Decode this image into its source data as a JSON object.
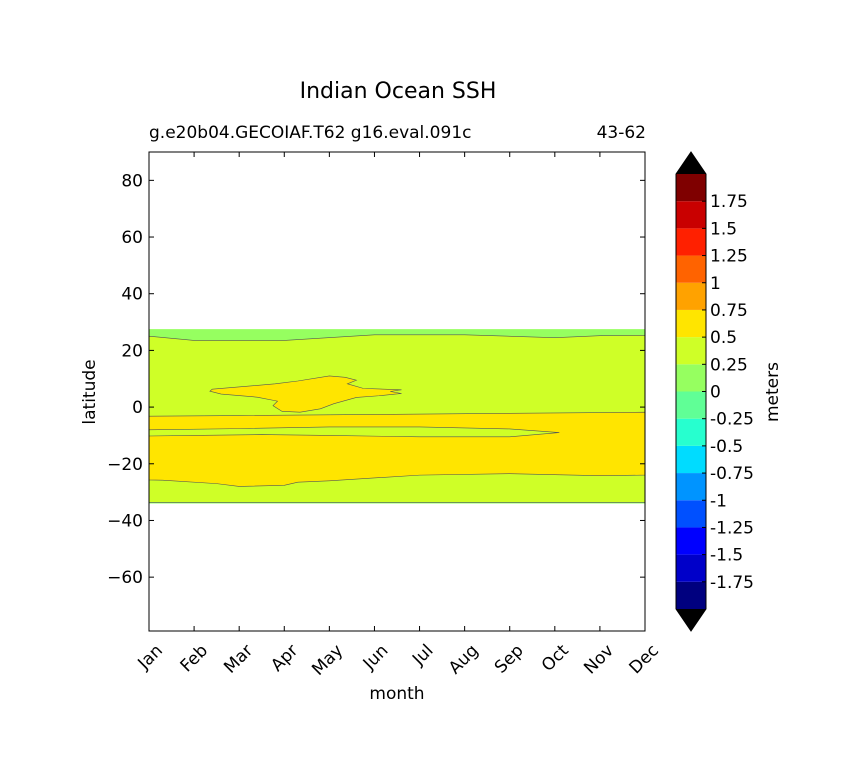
{
  "chart_data": {
    "type": "heatmap",
    "title": "Indian Ocean SSH",
    "subtitle_left": "g.e20b04.GECOIAF.T62 g16.eval.091c",
    "subtitle_right": "43-62",
    "xlabel": "month",
    "ylabel": "latitude",
    "x_categories": [
      "Jan",
      "Feb",
      "Mar",
      "Apr",
      "May",
      "Jun",
      "Jul",
      "Aug",
      "Sep",
      "Oct",
      "Nov",
      "Dec"
    ],
    "xlim": [
      0,
      11
    ],
    "ylim": [
      -79,
      90
    ],
    "y_ticks": [
      80,
      60,
      40,
      20,
      0,
      -20,
      -40,
      -60
    ],
    "colorbar": {
      "label": "meters",
      "levels": [
        -2.0,
        -1.75,
        -1.5,
        -1.25,
        -1.0,
        -0.75,
        -0.5,
        -0.25,
        0,
        0.25,
        0.5,
        0.75,
        1.0,
        1.25,
        1.5,
        1.75,
        2.0
      ],
      "tick_labels": [
        "1.75",
        "1.5",
        "1.25",
        "1",
        "0.75",
        "0.5",
        "0.25",
        "0",
        "-0.25",
        "-0.5",
        "-0.75",
        "-1",
        "-1.25",
        "-1.5",
        "-1.75"
      ],
      "tick_values": [
        1.75,
        1.5,
        1.25,
        1.0,
        0.75,
        0.5,
        0.25,
        0,
        -0.25,
        -0.5,
        -0.75,
        -1.0,
        -1.25,
        -1.5,
        -1.75
      ],
      "colors": [
        "#00007f",
        "#0000c9",
        "#0000ff",
        "#0050ff",
        "#0094ff",
        "#00dcff",
        "#27ffcf",
        "#60ff96",
        "#96ff60",
        "#cfff27",
        "#ffe500",
        "#ffa200",
        "#ff6300",
        "#ff2000",
        "#c90000",
        "#7f0000"
      ],
      "extend": "both",
      "under_color": "#000000",
      "over_color": "#000000"
    },
    "field_regions": [
      {
        "level": "0 to 0.25",
        "color": "#96ff60",
        "lat_range": [
          -34,
          27.5
        ],
        "x_range": [
          0,
          11
        ]
      },
      {
        "level": "0.25 to 0.5",
        "color": "#cfff27",
        "top_boundary": [
          [
            0,
            25
          ],
          [
            1,
            23.5
          ],
          [
            3,
            23.5
          ],
          [
            5,
            25.5
          ],
          [
            7,
            25.5
          ],
          [
            9,
            24.5
          ],
          [
            10,
            25.2
          ],
          [
            11,
            25.3
          ]
        ],
        "bottom_boundary": [
          [
            0,
            -33.6
          ],
          [
            11,
            -33.6
          ]
        ]
      },
      {
        "level": "0.5 to 0.75",
        "color": "#ffe500",
        "outline": [
          [
            0,
            -3.2
          ],
          [
            2,
            -3.0
          ],
          [
            5,
            -2.6
          ],
          [
            8,
            -2.2
          ],
          [
            11,
            -1.8
          ],
          [
            11,
            -24
          ],
          [
            10,
            -24.2
          ],
          [
            8,
            -23.5
          ],
          [
            6,
            -24
          ],
          [
            4,
            -26
          ],
          [
            3.3,
            -26.5
          ],
          [
            3,
            -27.6
          ],
          [
            2,
            -28
          ],
          [
            1.5,
            -27
          ],
          [
            0.3,
            -25.8
          ],
          [
            0,
            -25.7
          ]
        ]
      },
      {
        "level": "0.25 to 0.5",
        "color": "#cfff27",
        "outline": [
          [
            0,
            -8
          ],
          [
            2,
            -7.6
          ],
          [
            4,
            -7
          ],
          [
            6,
            -7
          ],
          [
            8,
            -7.7
          ],
          [
            9.1,
            -9
          ],
          [
            8,
            -10.5
          ],
          [
            6,
            -10.5
          ],
          [
            4,
            -10
          ],
          [
            2.5,
            -9.7
          ],
          [
            1,
            -10
          ],
          [
            0,
            -10.2
          ]
        ]
      },
      {
        "level": "0.5 to 0.75",
        "color": "#ffe500",
        "outline": [
          [
            1.4,
            6.3
          ],
          [
            2.8,
            8.2
          ],
          [
            3.3,
            9.2
          ],
          [
            4.0,
            11.0
          ],
          [
            4.35,
            10.5
          ],
          [
            4.6,
            9.5
          ],
          [
            4.4,
            8.2
          ],
          [
            4.75,
            6.6
          ],
          [
            5.6,
            6.1
          ],
          [
            5.35,
            5.5
          ],
          [
            5.6,
            4.8
          ],
          [
            5.1,
            4.0
          ],
          [
            4.6,
            3.4
          ],
          [
            4.1,
            1.2
          ],
          [
            3.8,
            -0.6
          ],
          [
            3.35,
            -1.8
          ],
          [
            2.95,
            -1.5
          ],
          [
            2.75,
            0.5
          ],
          [
            2.85,
            2.1
          ],
          [
            2.4,
            3.5
          ],
          [
            1.6,
            4.6
          ],
          [
            1.35,
            5.6
          ]
        ]
      }
    ]
  }
}
